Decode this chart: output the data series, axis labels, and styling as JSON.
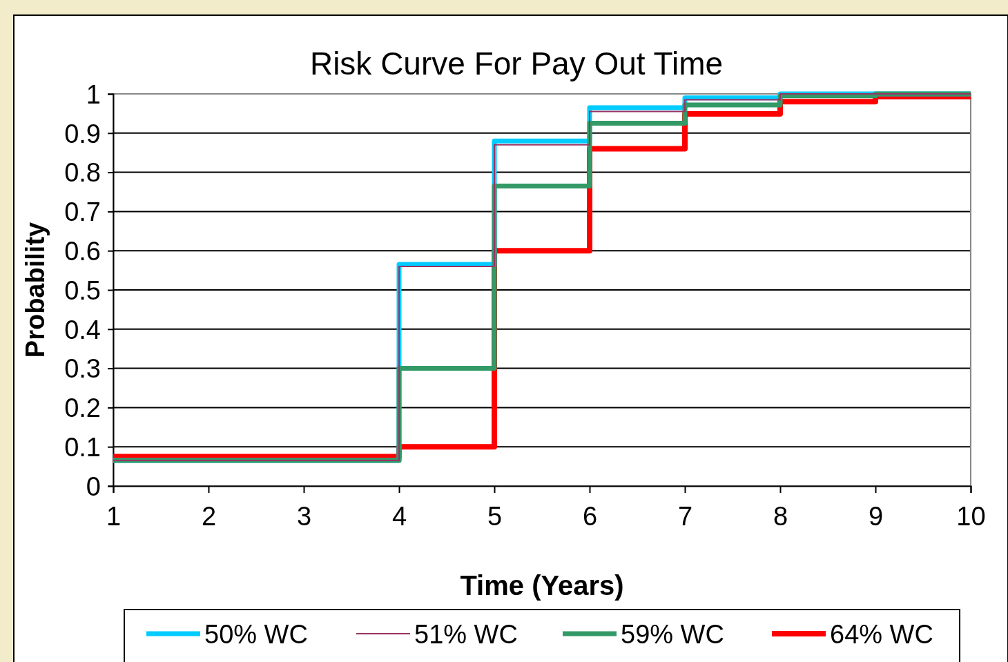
{
  "chart_data": {
    "type": "step",
    "title": "Risk Curve For Pay Out Time",
    "xlabel": "Time (Years)",
    "ylabel": "Probability",
    "x": [
      1,
      4,
      5,
      6,
      7,
      8,
      9,
      10
    ],
    "series": [
      {
        "name": "50% WC",
        "color": "#00ccff",
        "values": [
          0.065,
          0.565,
          0.88,
          0.965,
          0.99,
          1,
          1,
          1
        ]
      },
      {
        "name": "51% WC",
        "color": "#993366",
        "values": [
          0.065,
          0.56,
          0.87,
          0.955,
          0.985,
          1,
          1,
          1
        ]
      },
      {
        "name": "59% WC",
        "color": "#339966",
        "values": [
          0.065,
          0.3,
          0.765,
          0.925,
          0.972,
          0.995,
          1,
          1
        ]
      },
      {
        "name": "64% WC",
        "color": "#ff0000",
        "values": [
          0.075,
          0.1,
          0.6,
          0.86,
          0.949,
          0.98,
          0.993,
          0.993
        ]
      }
    ],
    "xlim": [
      1,
      10
    ],
    "xticks": [
      1,
      2,
      3,
      4,
      5,
      6,
      7,
      8,
      9,
      10
    ],
    "ylim": [
      0,
      1
    ],
    "yticks": [
      0,
      0.1,
      0.2,
      0.3,
      0.4,
      0.5,
      0.6,
      0.7,
      0.8,
      0.9,
      1
    ],
    "grid": "y",
    "legend": "bottom",
    "line_style": "solid",
    "marker": "none"
  }
}
